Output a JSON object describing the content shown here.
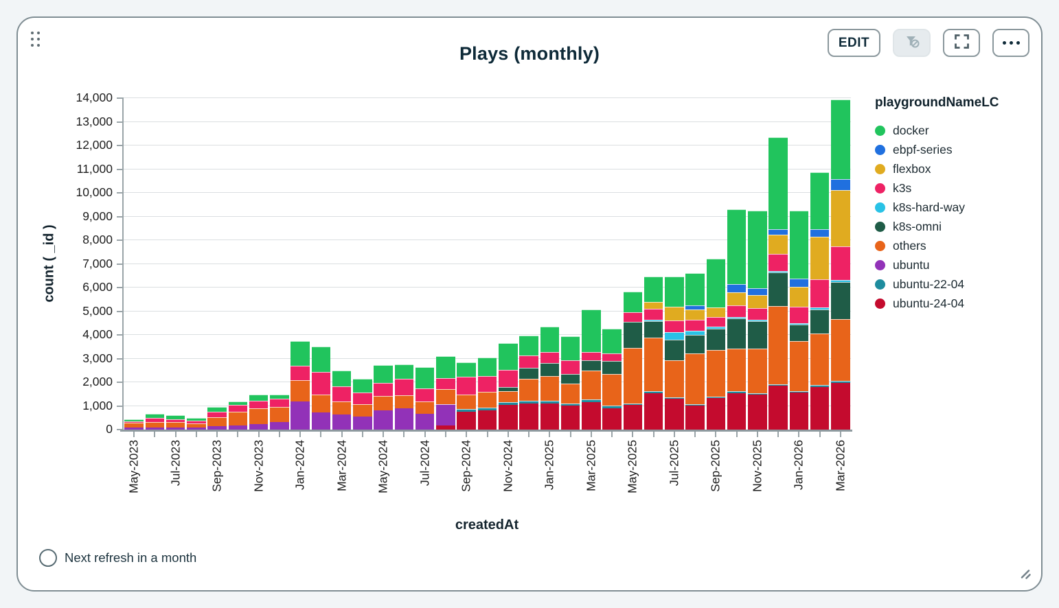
{
  "header": {
    "title": "Plays (monthly)",
    "edit_label": "EDIT",
    "icons": [
      "drag-handle-icon",
      "filter-off-icon",
      "fullscreen-icon",
      "ellipsis-icon"
    ]
  },
  "footer": {
    "refresh_text": "Next refresh in a month",
    "icons": [
      "circle-icon",
      "resize-handle-icon"
    ]
  },
  "ui_colors": {
    "card_border": "#7f8d93",
    "title_text": "#0e2a38",
    "disabled_button_bg": "#e6ebee",
    "page_background": "#f2f5f7",
    "gridline": "#dbdfe1",
    "axis": "#9aa4a8"
  },
  "chart_data": {
    "type": "bar",
    "variant": "stacked",
    "title": "Plays (monthly)",
    "xlabel": "createdAt",
    "ylabel": "count ( _id )",
    "ylim": [
      0,
      14000
    ],
    "ytick_step": 1000,
    "grid": true,
    "legend_title": "playgroundNameLC",
    "legend_position": "right",
    "x_label_every": 2,
    "y_tick_labels": [
      "0",
      "1,000",
      "2,000",
      "3,000",
      "4,000",
      "5,000",
      "6,000",
      "7,000",
      "8,000",
      "9,000",
      "10,000",
      "11,000",
      "12,000",
      "13,000",
      "14,000"
    ],
    "categories": [
      "May-2023",
      "Jun-2023",
      "Jul-2023",
      "Aug-2023",
      "Sep-2023",
      "Oct-2023",
      "Nov-2023",
      "Dec-2023",
      "Jan-2024",
      "Feb-2024",
      "Mar-2024",
      "Apr-2024",
      "May-2024",
      "Jun-2024",
      "Jul-2024",
      "Aug-2024",
      "Sep-2024",
      "Oct-2024",
      "Nov-2024",
      "Dec-2024",
      "Jan-2025",
      "Feb-2025",
      "Mar-2025",
      "Apr-2025",
      "May-2025",
      "Jun-2025",
      "Jul-2025",
      "Aug-2025",
      "Sep-2025",
      "Oct-2025",
      "Nov-2025",
      "Dec-2025",
      "Jan-2026",
      "Feb-2026",
      "Mar-2026"
    ],
    "stack_order": [
      "ubuntu-24-04",
      "ubuntu-22-04",
      "ubuntu",
      "others",
      "k8s-omni",
      "k8s-hard-way",
      "k3s",
      "flexbox",
      "ebpf-series",
      "docker"
    ],
    "series": [
      {
        "name": "docker",
        "color": "#21c45d",
        "values": [
          87,
          192,
          174,
          125,
          212,
          145,
          261,
          174,
          1035,
          1064,
          649,
          580,
          754,
          618,
          908,
          928,
          618,
          774,
          1110,
          850,
          1055,
          1015,
          1780,
          1044,
          870,
          1091,
          1285,
          1354,
          2059,
          3162,
          3268,
          3868,
          2871,
          2388,
          3364
        ]
      },
      {
        "name": "ebpf-series",
        "color": "#2070df",
        "values": [
          0,
          0,
          0,
          0,
          0,
          0,
          0,
          0,
          0,
          0,
          0,
          0,
          0,
          0,
          0,
          0,
          0,
          0,
          0,
          0,
          0,
          0,
          0,
          0,
          0,
          0,
          0,
          192,
          0,
          366,
          290,
          241,
          320,
          337,
          455
        ]
      },
      {
        "name": "flexbox",
        "color": "#e0ab20",
        "values": [
          0,
          0,
          0,
          0,
          0,
          0,
          0,
          0,
          0,
          0,
          0,
          0,
          0,
          0,
          0,
          0,
          0,
          0,
          0,
          0,
          0,
          0,
          0,
          0,
          0,
          290,
          580,
          426,
          406,
          550,
          551,
          821,
          850,
          1795,
          2370
        ]
      },
      {
        "name": "k3s",
        "color": "#ee2264",
        "values": [
          76,
          156,
          116,
          125,
          223,
          290,
          319,
          330,
          609,
          966,
          656,
          502,
          551,
          696,
          542,
          455,
          754,
          676,
          720,
          530,
          485,
          580,
          365,
          310,
          424,
          463,
          484,
          464,
          407,
          473,
          500,
          724,
          690,
          1190,
          1430
        ]
      },
      {
        "name": "k8s-hard-way",
        "color": "#29c2e6",
        "values": [
          0,
          0,
          0,
          0,
          0,
          0,
          0,
          0,
          0,
          0,
          0,
          0,
          0,
          0,
          0,
          0,
          0,
          0,
          0,
          0,
          0,
          0,
          0,
          0,
          0,
          50,
          337,
          174,
          77,
          60,
          60,
          50,
          75,
          68,
          96
        ]
      },
      {
        "name": "k8s-omni",
        "color": "#1f5c47",
        "values": [
          0,
          0,
          0,
          0,
          0,
          0,
          0,
          0,
          0,
          0,
          0,
          0,
          0,
          0,
          0,
          0,
          0,
          0,
          200,
          455,
          540,
          425,
          435,
          560,
          1093,
          696,
          870,
          792,
          917,
          1285,
          1160,
          1430,
          700,
          1030,
          1565
        ]
      },
      {
        "name": "others",
        "color": "#e8641a",
        "values": [
          185,
          232,
          220,
          175,
          386,
          580,
          676,
          638,
          899,
          745,
          533,
          513,
          609,
          560,
          522,
          647,
          609,
          649,
          460,
          919,
          1035,
          828,
          1204,
          1334,
          2349,
          2266,
          1554,
          2146,
          1970,
          1806,
          1874,
          3285,
          2100,
          2180,
          2610
        ]
      },
      {
        "name": "ubuntu",
        "color": "#9232b8",
        "values": [
          96,
          96,
          90,
          77,
          136,
          165,
          232,
          328,
          1198,
          725,
          647,
          551,
          812,
          890,
          676,
          899,
          0,
          0,
          0,
          0,
          0,
          0,
          0,
          0,
          0,
          0,
          0,
          0,
          0,
          0,
          0,
          0,
          0,
          0,
          0
        ]
      },
      {
        "name": "ubuntu-22-04",
        "color": "#1e8c9e",
        "values": [
          0,
          0,
          0,
          0,
          0,
          0,
          0,
          0,
          0,
          0,
          0,
          0,
          0,
          0,
          0,
          0,
          116,
          117,
          116,
          116,
          125,
          100,
          120,
          116,
          67,
          80,
          70,
          58,
          60,
          70,
          60,
          70,
          60,
          70,
          68
        ]
      },
      {
        "name": "ubuntu-24-04",
        "color": "#c40b2e",
        "values": [
          0,
          0,
          0,
          0,
          0,
          0,
          0,
          0,
          0,
          0,
          0,
          0,
          0,
          0,
          0,
          165,
          745,
          820,
          1035,
          1111,
          1102,
          1006,
          1160,
          890,
          1035,
          1540,
          1296,
          1006,
          1325,
          1546,
          1488,
          1856,
          1570,
          1807,
          1981
        ]
      }
    ]
  }
}
